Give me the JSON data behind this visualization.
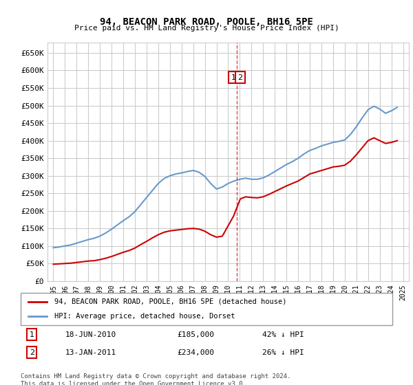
{
  "title": "94, BEACON PARK ROAD, POOLE, BH16 5PE",
  "subtitle": "Price paid vs. HM Land Registry's House Price Index (HPI)",
  "legend_house": "94, BEACON PARK ROAD, POOLE, BH16 5PE (detached house)",
  "legend_hpi": "HPI: Average price, detached house, Dorset",
  "footnote": "Contains HM Land Registry data © Crown copyright and database right 2024.\nThis data is licensed under the Open Government Licence v3.0.",
  "transactions": [
    {
      "num": 1,
      "date": "18-JUN-2010",
      "price": 185000,
      "hpi_pct": "42% ↓ HPI",
      "x_year": 2010.46
    },
    {
      "num": 2,
      "date": "13-JAN-2011",
      "price": 234000,
      "hpi_pct": "26% ↓ HPI",
      "x_year": 2011.04
    }
  ],
  "vline_x": 2010.75,
  "ylim": [
    0,
    680000
  ],
  "yticks": [
    0,
    50000,
    100000,
    150000,
    200000,
    250000,
    300000,
    350000,
    400000,
    450000,
    500000,
    550000,
    600000,
    650000
  ],
  "ytick_labels": [
    "£0",
    "£50K",
    "£100K",
    "£150K",
    "£200K",
    "£250K",
    "£300K",
    "£350K",
    "£400K",
    "£450K",
    "£500K",
    "£550K",
    "£600K",
    "£650K"
  ],
  "xlim": [
    1994.5,
    2025.5
  ],
  "line_color_house": "#cc0000",
  "line_color_hpi": "#6699cc",
  "marker_box_color": "#cc0000",
  "grid_color": "#cccccc",
  "background_color": "#ffffff",
  "hpi_data": {
    "years": [
      1995,
      1995.5,
      1996,
      1996.5,
      1997,
      1997.5,
      1998,
      1998.5,
      1999,
      1999.5,
      2000,
      2000.5,
      2001,
      2001.5,
      2002,
      2002.5,
      2003,
      2003.5,
      2004,
      2004.5,
      2005,
      2005.5,
      2006,
      2006.5,
      2007,
      2007.5,
      2008,
      2008.5,
      2009,
      2009.5,
      2010,
      2010.5,
      2011,
      2011.5,
      2012,
      2012.5,
      2013,
      2013.5,
      2014,
      2014.5,
      2015,
      2015.5,
      2016,
      2016.5,
      2017,
      2017.5,
      2018,
      2018.5,
      2019,
      2019.5,
      2020,
      2020.5,
      2021,
      2021.5,
      2022,
      2022.5,
      2023,
      2023.5,
      2024,
      2024.5
    ],
    "values": [
      95000,
      97000,
      100000,
      103000,
      108000,
      113000,
      118000,
      122000,
      128000,
      137000,
      148000,
      160000,
      172000,
      183000,
      198000,
      218000,
      238000,
      258000,
      278000,
      292000,
      300000,
      305000,
      308000,
      312000,
      315000,
      310000,
      298000,
      278000,
      262000,
      268000,
      278000,
      285000,
      290000,
      293000,
      290000,
      290000,
      294000,
      302000,
      312000,
      322000,
      332000,
      340000,
      350000,
      362000,
      372000,
      378000,
      385000,
      390000,
      395000,
      398000,
      402000,
      418000,
      440000,
      465000,
      488000,
      498000,
      490000,
      478000,
      485000,
      495000
    ]
  },
  "house_data": {
    "years": [
      1995,
      1995.5,
      1996,
      1996.5,
      1997,
      1997.5,
      1998,
      1998.5,
      1999,
      1999.5,
      2000,
      2000.5,
      2001,
      2001.5,
      2002,
      2002.5,
      2003,
      2003.5,
      2004,
      2004.5,
      2005,
      2005.5,
      2006,
      2006.5,
      2007,
      2007.5,
      2008,
      2008.5,
      2009,
      2009.5,
      2010.46,
      2011.04,
      2011.5,
      2012,
      2012.5,
      2013,
      2013.5,
      2014,
      2014.5,
      2015,
      2015.5,
      2016,
      2016.5,
      2017,
      2017.5,
      2018,
      2018.5,
      2019,
      2019.5,
      2020,
      2020.5,
      2021,
      2021.5,
      2022,
      2022.5,
      2023,
      2023.5,
      2024,
      2024.5
    ],
    "values": [
      48000,
      49000,
      50000,
      51000,
      53000,
      55000,
      57000,
      58000,
      61000,
      65000,
      70000,
      76000,
      82000,
      87000,
      94000,
      104000,
      113000,
      123000,
      132000,
      139000,
      143000,
      145000,
      147000,
      149000,
      150000,
      148000,
      142000,
      132000,
      125000,
      128000,
      185000,
      234000,
      240000,
      238000,
      237000,
      240000,
      247000,
      255000,
      263000,
      271000,
      278000,
      285000,
      295000,
      305000,
      310000,
      315000,
      320000,
      325000,
      327000,
      330000,
      342000,
      360000,
      380000,
      400000,
      408000,
      400000,
      392000,
      395000,
      400000
    ]
  }
}
